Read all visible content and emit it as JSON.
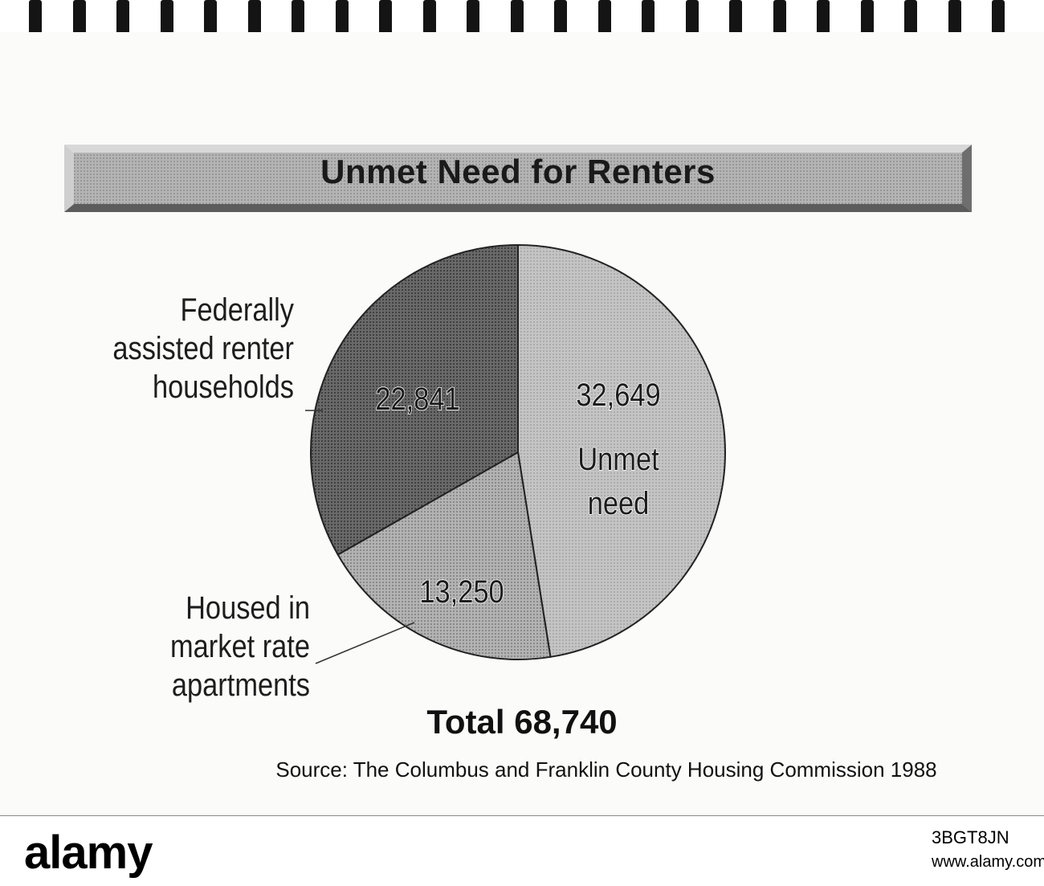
{
  "chart_data": {
    "type": "pie",
    "title": "Unmet Need for Renters",
    "slices": [
      {
        "name": "Unmet need",
        "label_lines": [
          "Unmet",
          "need"
        ],
        "value": 32649,
        "value_label": "32,649",
        "color": "#a9a9a9"
      },
      {
        "name": "Housed in market rate apartments",
        "value": 13250,
        "value_label": "13,250",
        "color": "#bdbdbd"
      },
      {
        "name": "Federally assisted renter households",
        "value": 22841,
        "value_label": "22,841",
        "color": "#5f5f5f"
      }
    ],
    "callouts": {
      "federally": [
        "Federally",
        "assisted renter",
        "households"
      ],
      "housed": [
        "Housed in",
        "market rate",
        "apartments"
      ]
    },
    "total_label": "Total 68,740",
    "source": "Source: The Columbus and Franklin County Housing Commission 1988"
  },
  "footer": {
    "brand": "alamy",
    "image_id": "3BGT8JN",
    "url": "www.alamy.com"
  }
}
